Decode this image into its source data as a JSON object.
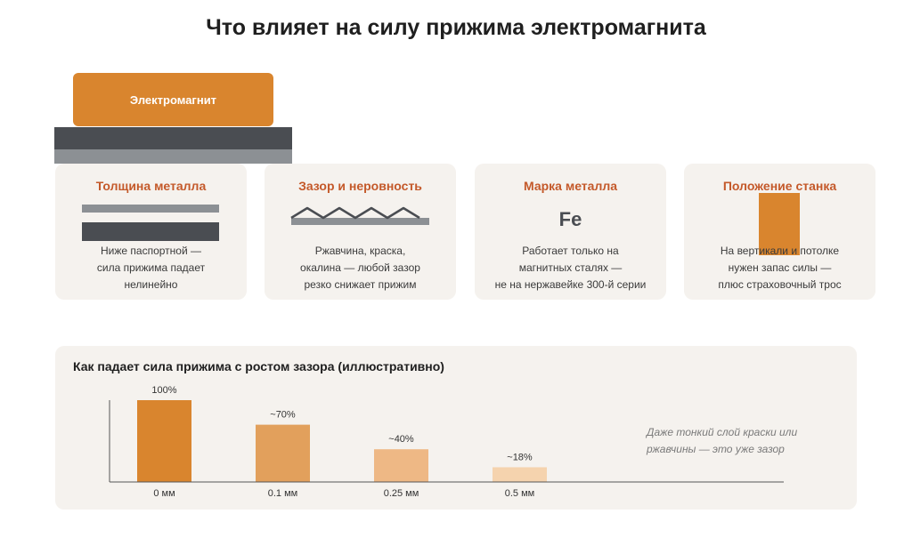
{
  "page": {
    "title": "Что влияет на силу прижима электромагнита"
  },
  "illustration": {
    "magnet_label": "Электромагнит"
  },
  "cards": [
    {
      "title": "Толщина металла",
      "icon": "metal-thickness-icon",
      "lines": [
        "Ниже паспортной —",
        "сила прижима падает",
        "нелинейно"
      ]
    },
    {
      "title": "Зазор и неровность",
      "icon": "gap-zigzag-icon",
      "lines": [
        "Ржавчина, краска,",
        "окалина — любой зазор",
        "резко снижает прижим"
      ]
    },
    {
      "title": "Марка металла",
      "icon": "iron-symbol",
      "symbol": "Fe",
      "lines": [
        "Работает только на",
        "магнитных сталях —",
        "не на нержавейке 300-й серии"
      ]
    },
    {
      "title": "Положение станка",
      "icon": "vertical-position-icon",
      "lines": [
        "На вертикали и потолке",
        "нужен запас силы —",
        "плюс страховочный трос"
      ]
    }
  ],
  "colors": {
    "accent": "#d9852e",
    "title_accent": "#c4592a",
    "panel_bg": "#f5f2ee",
    "dark_metal": "#4a4d52",
    "light_metal": "#8c9094"
  },
  "chart_data": {
    "type": "bar",
    "title": "Как падает сила прижима с ростом зазора (иллюстративно)",
    "categories": [
      "0 мм",
      "0.1 мм",
      "0.25 мм",
      "0.5 мм"
    ],
    "values": [
      100,
      70,
      40,
      18
    ],
    "value_labels": [
      "100%",
      "~70%",
      "~40%",
      "~18%"
    ],
    "bar_colors": [
      "#d9852e",
      "#e2a05c",
      "#eeb885",
      "#f5d3ae"
    ],
    "ylim": [
      0,
      100
    ],
    "xlabel": "",
    "ylabel": "",
    "grid": false,
    "legend": "none",
    "annotation": [
      "Даже тонкий слой краски или",
      "ржавчины — это уже зазор"
    ]
  }
}
